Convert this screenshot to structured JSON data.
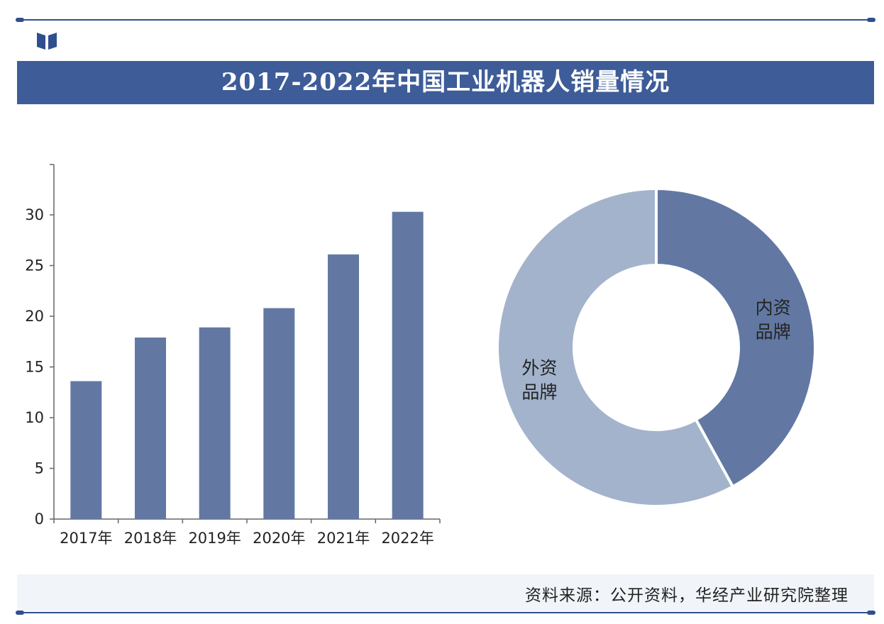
{
  "header": {
    "title": "2017-2022年中国工业机器人销量情况"
  },
  "footer": {
    "source": "资料来源：公开资料，华经产业研究院整理"
  },
  "colors": {
    "frame": "#2f4f8f",
    "title_bg": "#3d5c98",
    "bar": "#6278a3",
    "domestic": "#6278a3",
    "foreign": "#a3b3cc"
  },
  "chart_data": [
    {
      "type": "bar",
      "categories": [
        "2017年",
        "2018年",
        "2019年",
        "2020年",
        "2021年",
        "2022年"
      ],
      "values": [
        13.6,
        17.9,
        18.9,
        20.8,
        26.1,
        30.3
      ],
      "title": "",
      "xlabel": "",
      "ylabel": "",
      "ylim": [
        0,
        35
      ],
      "yticks": [
        0,
        5,
        10,
        15,
        20,
        25,
        30
      ],
      "grid": false
    },
    {
      "type": "pie",
      "donut": true,
      "labels": [
        "内资品牌",
        "外资品牌"
      ],
      "label_lines": [
        [
          "内资",
          "品牌"
        ],
        [
          "外资",
          "品牌"
        ]
      ],
      "values": [
        42,
        58
      ]
    }
  ]
}
